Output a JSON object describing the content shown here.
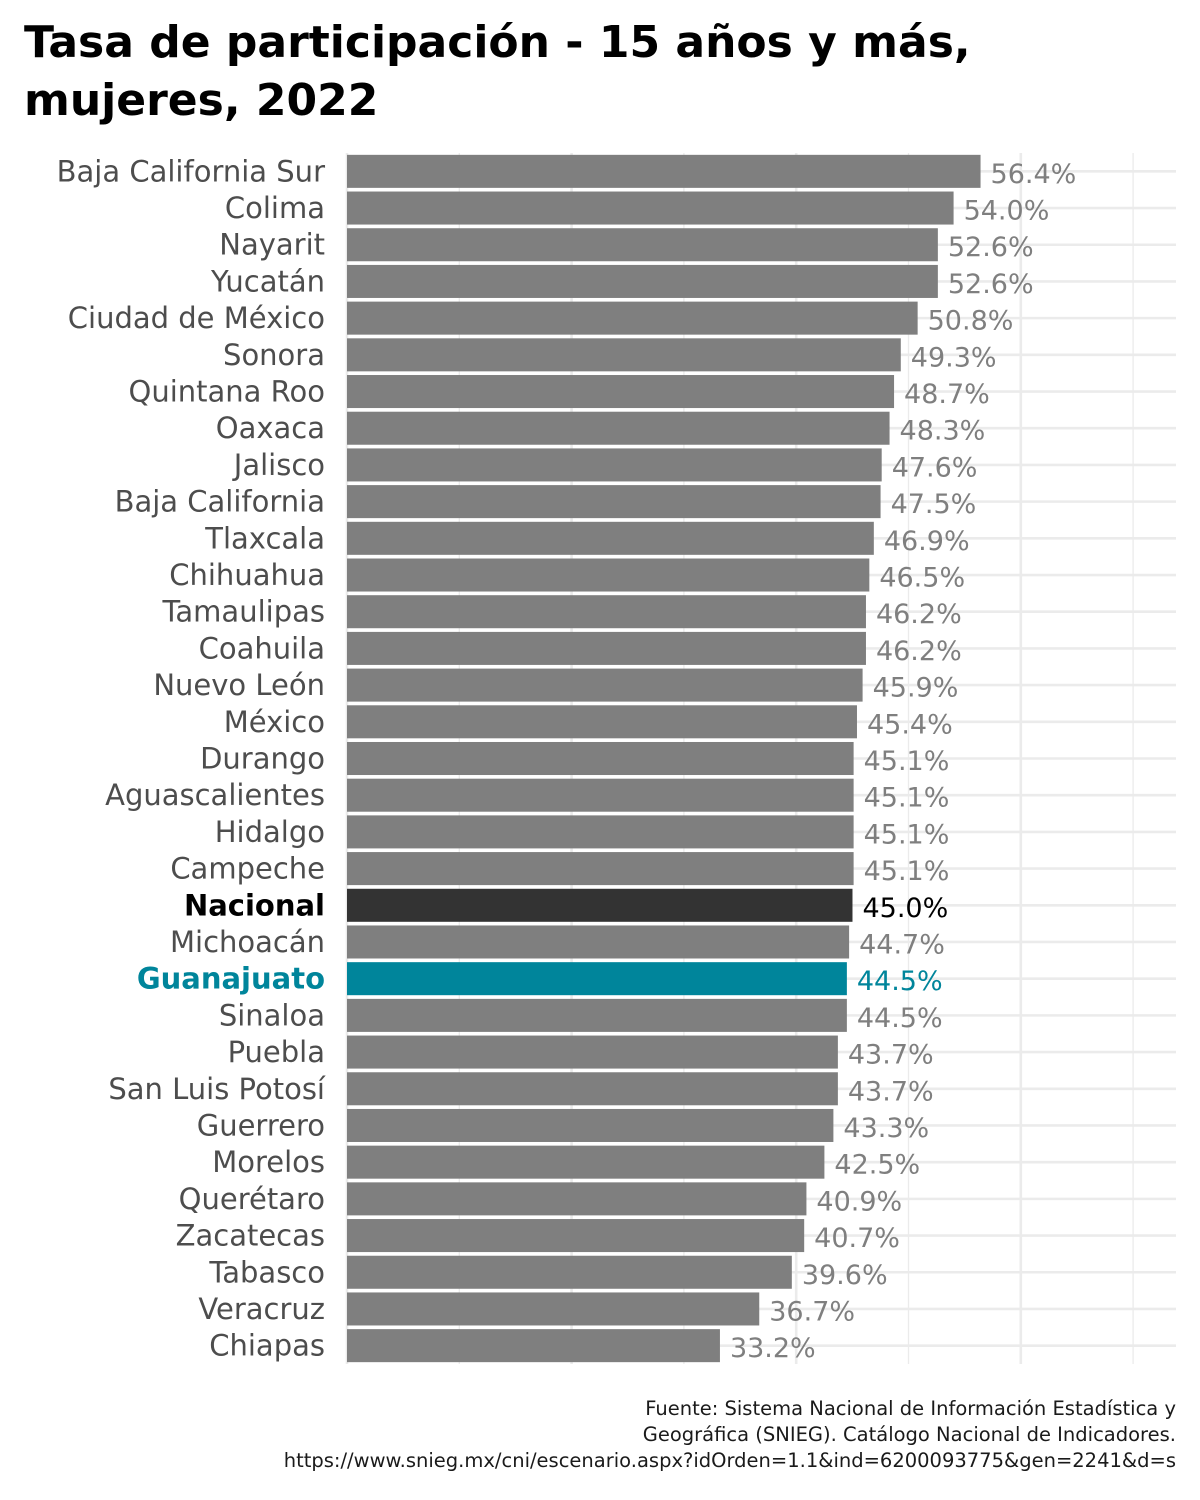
{
  "chart_data": {
    "type": "bar",
    "orientation": "horizontal",
    "title": "Tasa de participación - 15 años y más, mujeres, 2022",
    "categories": [
      "Baja California Sur",
      "Colima",
      "Nayarit",
      "Yucatán",
      "Ciudad de México",
      "Sonora",
      "Quintana Roo",
      "Oaxaca",
      "Jalisco",
      "Baja California",
      "Tlaxcala",
      "Chihuahua",
      "Tamaulipas",
      "Coahuila",
      "Nuevo León",
      "México",
      "Durango",
      "Aguascalientes",
      "Hidalgo",
      "Campeche",
      "Nacional",
      "Michoacán",
      "Guanajuato",
      "Sinaloa",
      "Puebla",
      "San Luis Potosí",
      "Guerrero",
      "Morelos",
      "Querétaro",
      "Zacatecas",
      "Tabasco",
      "Veracruz",
      "Chiapas"
    ],
    "values": [
      56.4,
      54.0,
      52.6,
      52.6,
      50.8,
      49.3,
      48.7,
      48.3,
      47.6,
      47.5,
      46.9,
      46.5,
      46.2,
      46.2,
      45.9,
      45.4,
      45.1,
      45.1,
      45.1,
      45.1,
      45.0,
      44.7,
      44.5,
      44.5,
      43.7,
      43.7,
      43.3,
      42.5,
      40.9,
      40.7,
      39.6,
      36.7,
      33.2
    ],
    "value_labels": [
      "56.4%",
      "54.0%",
      "52.6%",
      "52.6%",
      "50.8%",
      "49.3%",
      "48.7%",
      "48.3%",
      "47.6%",
      "47.5%",
      "46.9%",
      "46.5%",
      "46.2%",
      "46.2%",
      "45.9%",
      "45.4%",
      "45.1%",
      "45.1%",
      "45.1%",
      "45.1%",
      "45.0%",
      "44.7%",
      "44.5%",
      "44.5%",
      "43.7%",
      "43.7%",
      "43.3%",
      "42.5%",
      "40.9%",
      "40.7%",
      "39.6%",
      "36.7%",
      "33.2%"
    ],
    "xlim": [
      0,
      73.8
    ],
    "grid": true,
    "colors": {
      "default_bar": "#7f7f7f",
      "default_label": "#7f7f7f",
      "default_tick": "#4d4d4d",
      "national": "#333333",
      "national_text": "#000000",
      "highlight": "#00859b",
      "grid": "#ebebeb"
    },
    "emphasis": {
      "Nacional": "national",
      "Guanajuato": "highlight"
    }
  },
  "caption": {
    "line1": "Fuente: Sistema Nacional de Información Estadística y",
    "line2": "Geográfica (SNIEG). Catálogo Nacional de Indicadores.",
    "line3": "https://www.snieg.mx/cni/escenario.aspx?idOrden=1.1&ind=6200093775&gen=2241&d=s"
  }
}
